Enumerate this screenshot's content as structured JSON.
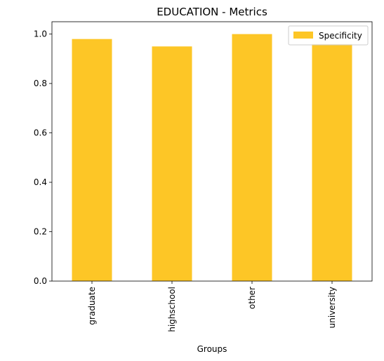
{
  "chart_data": {
    "type": "bar",
    "title": "EDUCATION - Metrics",
    "xlabel": "Groups",
    "ylabel": "",
    "categories": [
      "graduate",
      "highschool",
      "other",
      "university"
    ],
    "series": [
      {
        "name": "Specificity",
        "values": [
          0.98,
          0.95,
          1.0,
          0.96
        ],
        "color": "#fdc626"
      }
    ],
    "ylim": [
      0,
      1.05
    ],
    "yticks": [
      0.0,
      0.2,
      0.4,
      0.6,
      0.8,
      1.0
    ],
    "ytick_labels": [
      "0.0",
      "0.2",
      "0.4",
      "0.6",
      "0.8",
      "1.0"
    ],
    "grid": false,
    "legend_position": "top-right"
  }
}
